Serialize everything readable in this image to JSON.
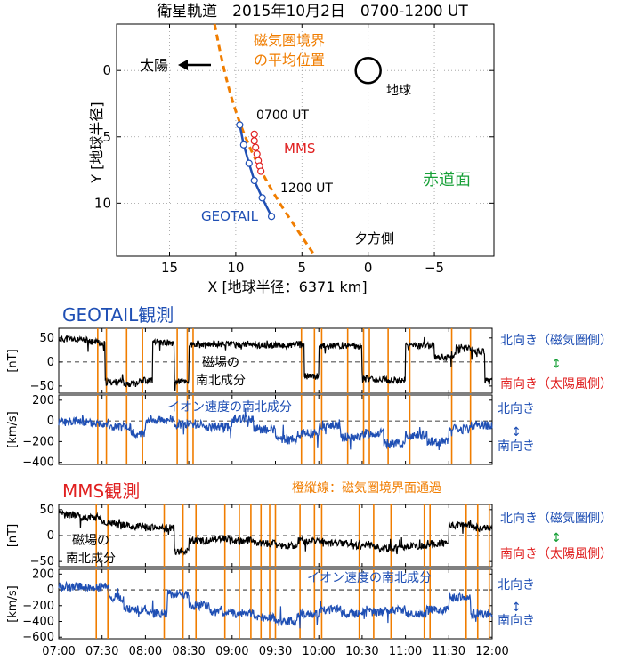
{
  "chart_data": [
    {
      "type": "scatter",
      "title": "衛星軌道　2015年10月2日　0700-1200 UT",
      "xlabel": "X [地球半径：6371 km]",
      "ylabel": "Y [地球半径]",
      "xlim": [
        19,
        -9.5
      ],
      "ylim": [
        14,
        -3.5
      ],
      "xticks": [
        15,
        10,
        5,
        0,
        -5
      ],
      "xtick_labels": [
        "15",
        "10",
        "5",
        "0",
        "−5"
      ],
      "yticks": [
        0,
        5,
        10
      ],
      "ytick_labels": [
        "0",
        "5",
        "10"
      ],
      "grid": true,
      "magnetopause_label_1": "磁気圏境界",
      "magnetopause_label_2": "の平均位置",
      "magnetopause_color": "#f07d00",
      "magnetopause_points": [
        [
          11.6,
          -3.5
        ],
        [
          11.1,
          -1
        ],
        [
          10.5,
          1.5
        ],
        [
          9.7,
          4
        ],
        [
          8.6,
          6.6
        ],
        [
          7.2,
          9.2
        ],
        [
          5.5,
          11.8
        ],
        [
          4.0,
          14
        ]
      ],
      "sun_label": "太陽",
      "earth_label": "地球",
      "start_label": "0700 UT",
      "end_label": "1200 UT",
      "dusk_label": "夕方側",
      "plane_label": "赤道面",
      "series": [
        {
          "name": "GEOTAIL",
          "color": "#1f4fb4",
          "points": [
            [
              9.7,
              4.1
            ],
            [
              9.4,
              5.6
            ],
            [
              9.0,
              7.0
            ],
            [
              8.6,
              8.3
            ],
            [
              8.0,
              9.6
            ],
            [
              7.3,
              11.0
            ]
          ]
        },
        {
          "name": "MMS",
          "color": "#e02020",
          "points": [
            [
              8.6,
              4.8
            ],
            [
              8.6,
              5.3
            ],
            [
              8.5,
              5.8
            ],
            [
              8.4,
              6.3
            ],
            [
              8.3,
              6.8
            ],
            [
              8.2,
              7.2
            ],
            [
              8.1,
              7.6
            ]
          ]
        }
      ]
    },
    {
      "type": "line",
      "title": "GEOTAIL観測",
      "title_color": "#1f4fb4",
      "x_range": [
        "07:00",
        "12:00"
      ],
      "panels": [
        {
          "ylabel": "[nT]",
          "ylim": [
            -65,
            70
          ],
          "yticks": [
            50,
            0,
            -50
          ],
          "color": "#000000",
          "label_1": "磁場の",
          "label_2": "南北成分",
          "right_top": "北向き（磁気圏側）",
          "right_bottom": "南向き（太陽風側）",
          "arrow": "↕",
          "right_top_color": "#1f4fb4",
          "right_bottom_color": "#e02020",
          "arrow_color": "#18a038",
          "x": [
            "07:00",
            "07:10",
            "07:20",
            "07:28",
            "07:32",
            "07:45",
            "07:55",
            "08:05",
            "08:20",
            "08:30",
            "08:45",
            "09:00",
            "09:15",
            "09:30",
            "09:40",
            "09:50",
            "10:00",
            "10:10",
            "10:20",
            "10:30",
            "10:45",
            "11:00",
            "11:10",
            "11:20",
            "11:30",
            "11:35",
            "11:45",
            "11:55"
          ],
          "y": [
            48,
            45,
            42,
            40,
            -42,
            -45,
            -38,
            40,
            -40,
            35,
            38,
            36,
            35,
            34,
            36,
            -30,
            34,
            35,
            33,
            -35,
            -38,
            33,
            34,
            10,
            15,
            30,
            22,
            -40
          ]
        },
        {
          "ylabel": "[km/s]",
          "ylim": [
            -420,
            250
          ],
          "yticks": [
            200,
            0,
            -200,
            -400
          ],
          "color": "#1f4fb4",
          "label": "イオン速度の南北成分",
          "right_top": "北向き",
          "right_bottom": "南向き",
          "arrow": "↕",
          "x": [
            "07:00",
            "07:20",
            "07:35",
            "07:50",
            "08:00",
            "08:20",
            "08:40",
            "09:00",
            "09:15",
            "09:30",
            "09:45",
            "10:00",
            "10:15",
            "10:30",
            "10:45",
            "11:00",
            "11:15",
            "11:30",
            "11:45",
            "12:00"
          ],
          "y": [
            -10,
            -20,
            -60,
            -120,
            10,
            -30,
            -60,
            20,
            -80,
            -180,
            -120,
            -40,
            -160,
            -120,
            -220,
            -140,
            -200,
            -80,
            -40,
            -20
          ]
        }
      ],
      "crossings": [
        "07:27",
        "07:33",
        "07:47",
        "07:58",
        "08:22",
        "08:29",
        "08:33",
        "09:48",
        "09:57",
        "10:02",
        "10:20",
        "10:31",
        "10:35",
        "10:48",
        "11:03",
        "11:32",
        "11:45"
      ]
    },
    {
      "type": "line",
      "title": "MMS観測",
      "title_color": "#e02020",
      "crossing_note": "橙縦線：磁気圏境界面通過",
      "x_range": [
        "07:00",
        "12:00"
      ],
      "xtick_labels": [
        "07:00",
        "07:30",
        "08:00",
        "08:30",
        "09:00",
        "09:30",
        "10:00",
        "10:30",
        "11:00",
        "11:30",
        "12:00"
      ],
      "panels": [
        {
          "ylabel": "[nT]",
          "ylim": [
            -60,
            60
          ],
          "yticks": [
            50,
            0,
            -50
          ],
          "color": "#000000",
          "label_1": "磁場の",
          "label_2": "南北成分",
          "right_top": "北向き（磁気圏側）",
          "right_bottom": "南向き（太陽風側）",
          "arrow": "↕",
          "right_top_color": "#1f4fb4",
          "right_bottom_color": "#e02020",
          "arrow_color": "#18a038",
          "x": [
            "07:00",
            "07:15",
            "07:30",
            "07:40",
            "07:50",
            "08:00",
            "08:20",
            "08:30",
            "08:45",
            "09:00",
            "09:15",
            "09:30",
            "09:45",
            "10:00",
            "10:20",
            "10:40",
            "11:00",
            "11:15",
            "11:30",
            "11:45",
            "12:00"
          ],
          "y": [
            40,
            35,
            25,
            20,
            18,
            15,
            -30,
            -10,
            -5,
            -10,
            -15,
            -20,
            -10,
            -15,
            -20,
            -25,
            -20,
            -15,
            20,
            15,
            -5
          ]
        },
        {
          "ylabel": "[km/s]",
          "ylim": [
            -620,
            260
          ],
          "yticks": [
            200,
            0,
            -200,
            -400,
            -600
          ],
          "color": "#1f4fb4",
          "label": "イオン速度の南北成分",
          "right_top": "北向き",
          "right_bottom": "南向き",
          "arrow": "↕",
          "x": [
            "07:00",
            "07:20",
            "07:35",
            "07:45",
            "08:00",
            "08:15",
            "08:30",
            "08:45",
            "09:00",
            "09:15",
            "09:30",
            "09:45",
            "10:00",
            "10:15",
            "10:30",
            "10:45",
            "11:00",
            "11:15",
            "11:30",
            "11:45",
            "12:00"
          ],
          "y": [
            40,
            30,
            -100,
            -250,
            -300,
            -50,
            -200,
            -280,
            -300,
            -350,
            -400,
            -300,
            -250,
            -300,
            -280,
            -250,
            -300,
            -250,
            -100,
            -300,
            -200
          ]
        }
      ],
      "crossings": [
        "07:26",
        "07:34",
        "08:13",
        "08:26",
        "08:35",
        "08:55",
        "09:05",
        "09:13",
        "09:20",
        "09:26",
        "09:30",
        "09:47",
        "09:57",
        "10:02",
        "10:28",
        "10:38",
        "10:50",
        "11:13",
        "11:17",
        "11:42",
        "11:50",
        "11:58"
      ]
    }
  ],
  "colors": {
    "crossing": "#f07d00",
    "blue": "#1f4fb4",
    "red": "#e02020",
    "green": "#18a038"
  }
}
